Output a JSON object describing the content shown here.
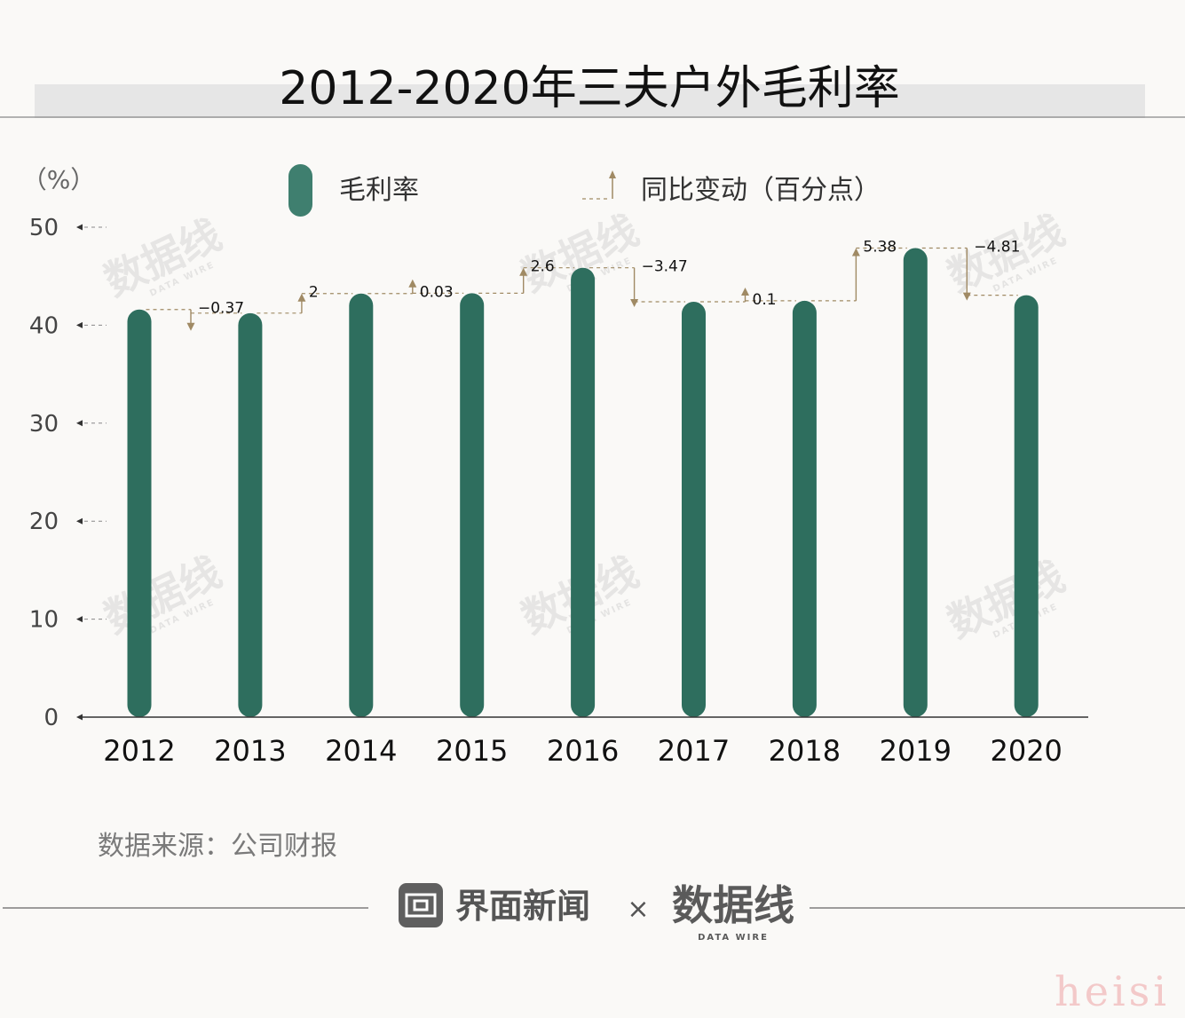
{
  "chart_data": {
    "type": "bar",
    "title": "2012-2020年三夫户外毛利率",
    "unit_label": "（%）",
    "categories": [
      "2012",
      "2013",
      "2014",
      "2015",
      "2016",
      "2017",
      "2018",
      "2019",
      "2020"
    ],
    "values": [
      41.6,
      41.23,
      43.23,
      43.26,
      45.86,
      42.39,
      42.49,
      47.87,
      43.06
    ],
    "ylim": [
      0,
      50
    ],
    "yticks": [
      "0",
      "10",
      "20",
      "30",
      "40",
      "50"
    ],
    "changes": [
      {
        "label": "−0.37",
        "direction": "down"
      },
      {
        "label": "2",
        "direction": "up"
      },
      {
        "label": "0.03",
        "direction": "up"
      },
      {
        "label": "2.6",
        "direction": "up"
      },
      {
        "label": "−3.47",
        "direction": "down"
      },
      {
        "label": "0.1",
        "direction": "up"
      },
      {
        "label": "5.38",
        "direction": "up"
      },
      {
        "label": "−4.81",
        "direction": "down"
      }
    ],
    "legend": {
      "bar": "毛利率",
      "change": "同比变动（百分点）",
      "placement": "top"
    },
    "colors": {
      "bar": "#2e6e5e",
      "legend_bar": "#3f7f6f",
      "arrow": "#a08a64",
      "axis": "#333333",
      "title_band": "#e6e6e6"
    }
  },
  "source": "数据来源：公司财报",
  "footer": {
    "brand": "界面新闻",
    "separator": "×",
    "partner": "数据线",
    "partner_sub": "DATA WIRE"
  },
  "watermark": {
    "text": "数据线",
    "sub": "DATA WIRE"
  },
  "corner_mark": "heisi"
}
